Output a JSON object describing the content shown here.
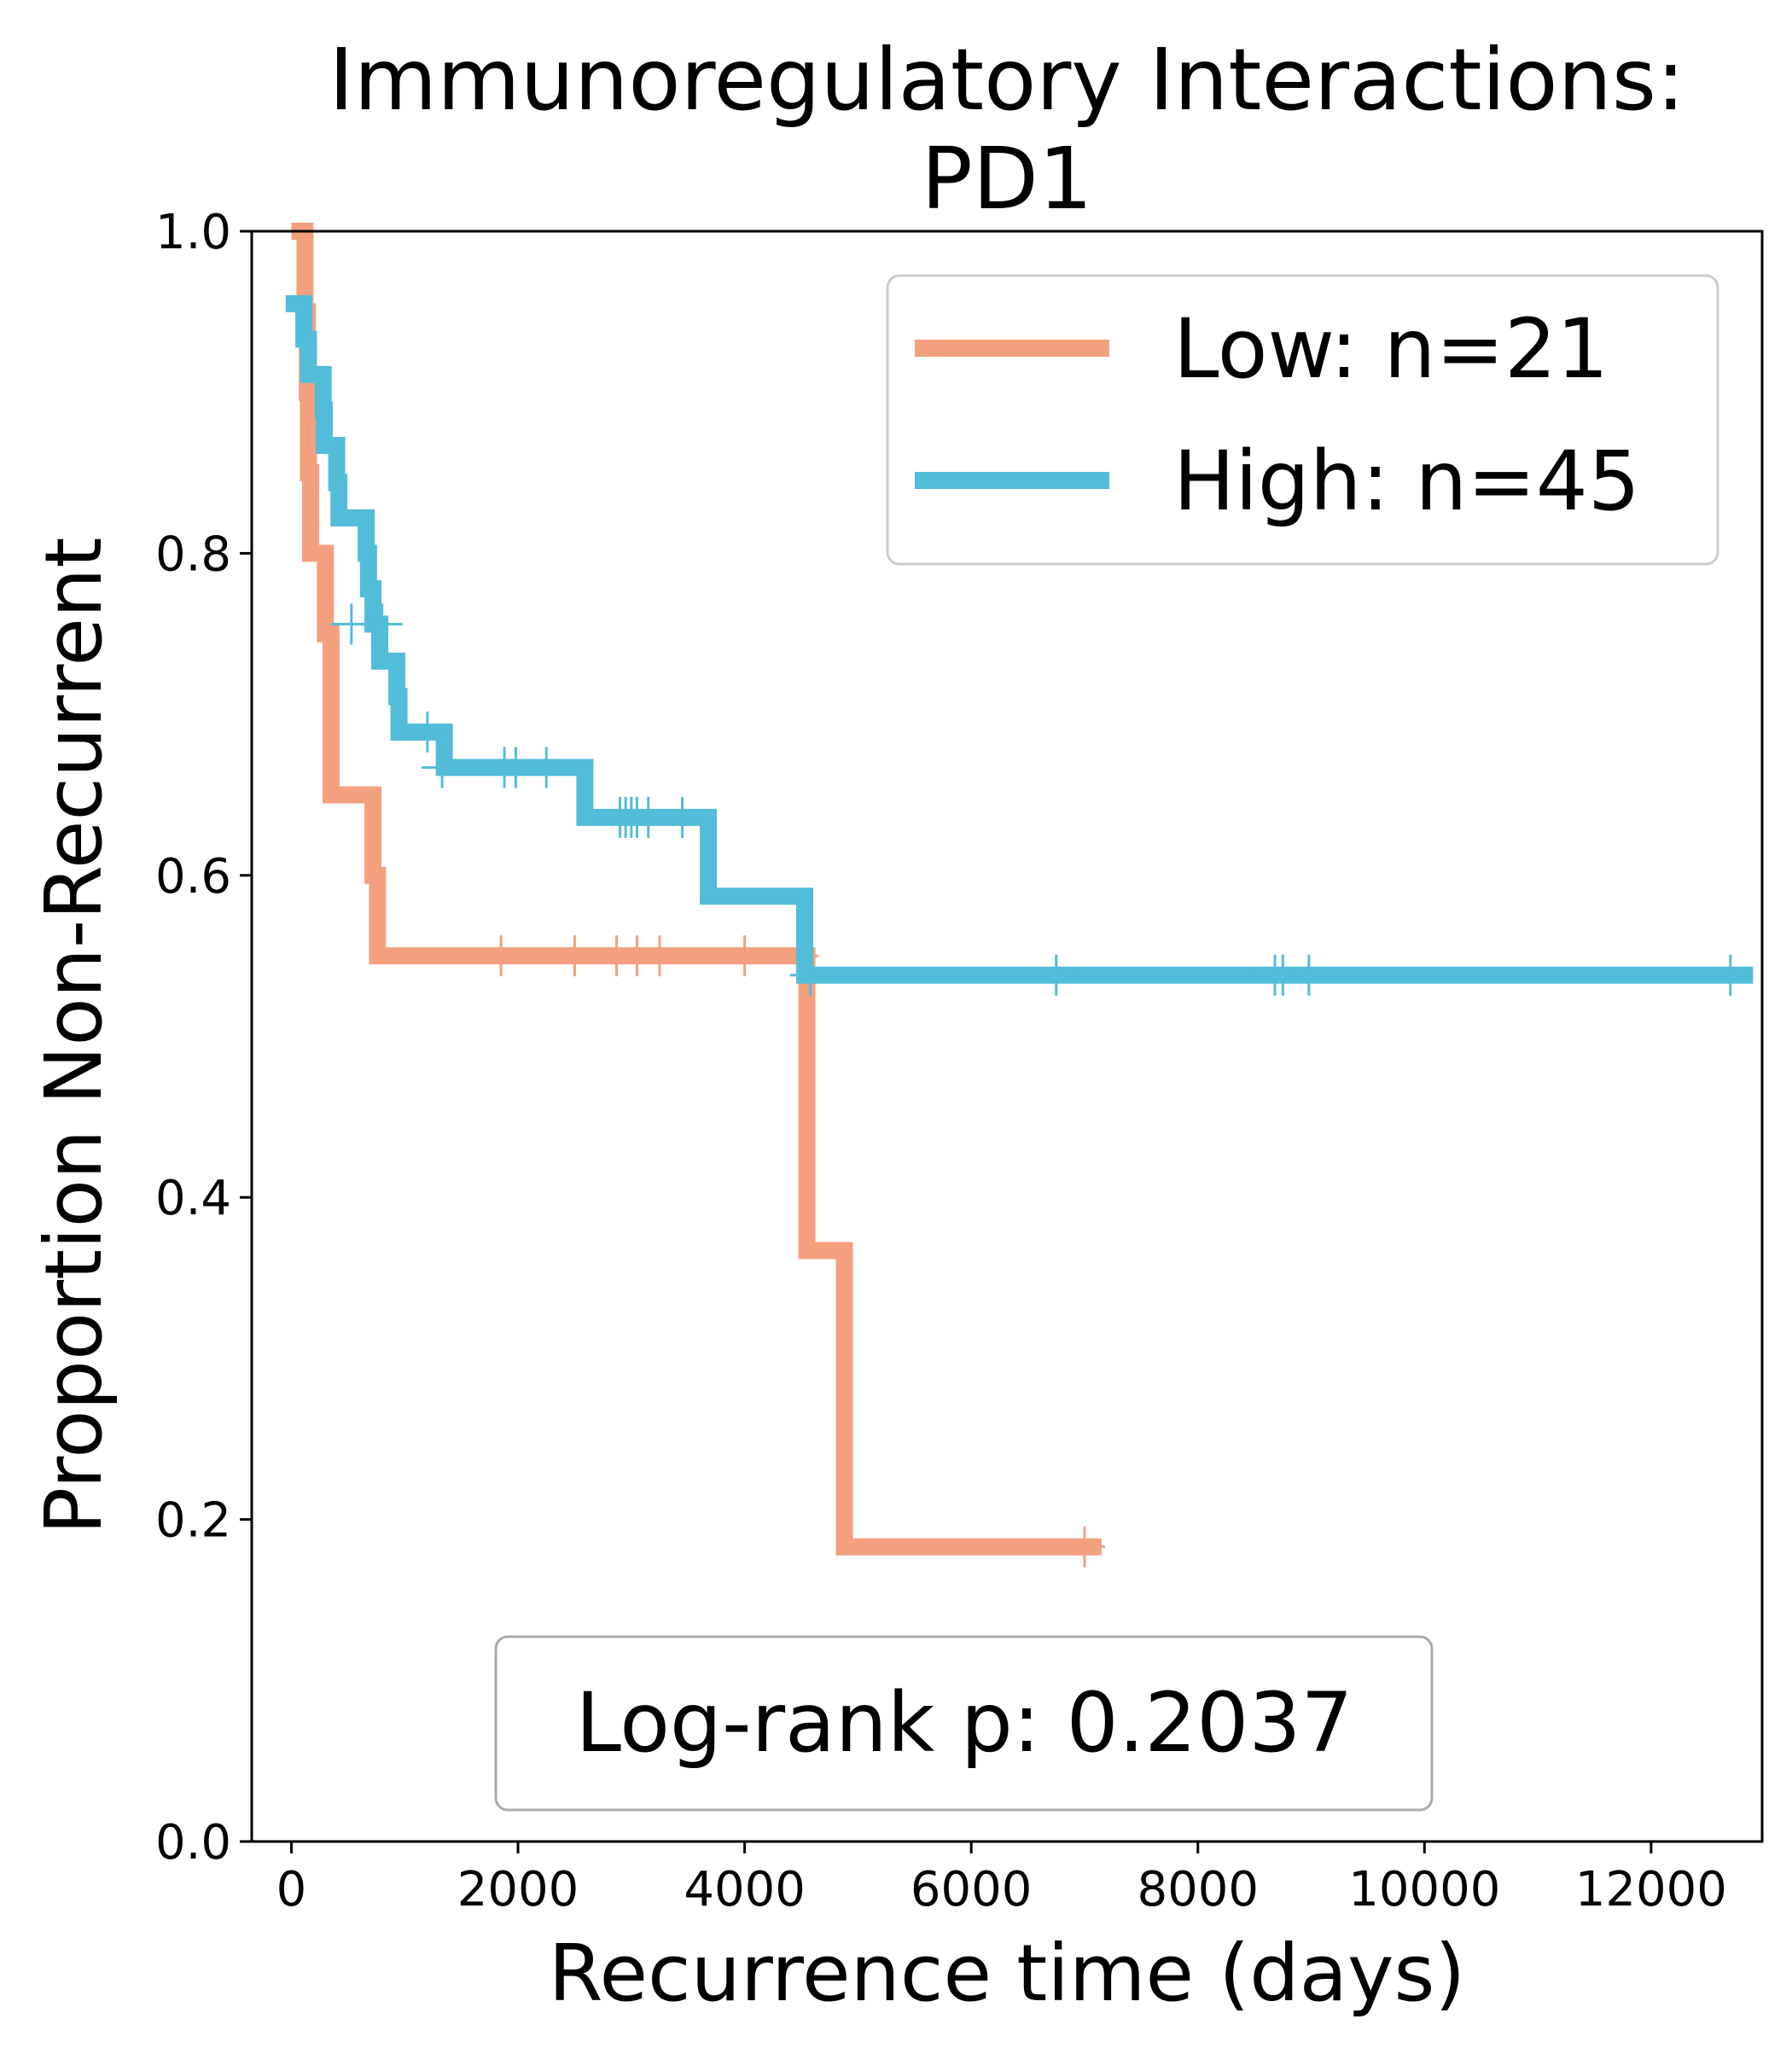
{
  "chart_data": {
    "type": "line",
    "title_line1": "Immunoregulatory Interactions:",
    "title_line2": "PD1",
    "xlabel": "Recurrence time (days)",
    "ylabel": "Proportion Non-Recurrent",
    "xlim": [
      -350,
      12980
    ],
    "ylim": [
      0,
      1.0
    ],
    "xticks": [
      0,
      2000,
      4000,
      6000,
      8000,
      10000,
      12000
    ],
    "yticks": [
      0.0,
      0.2,
      0.4,
      0.6,
      0.8,
      1.0
    ],
    "xtick_labels": [
      "0",
      "2000",
      "4000",
      "6000",
      "8000",
      "10000",
      "12000"
    ],
    "ytick_labels": [
      "0.0",
      "0.2",
      "0.4",
      "0.6",
      "0.8",
      "1.0"
    ],
    "grid": false,
    "legend_position": "top-right",
    "annotation": "Log-rank p: 0.2037",
    "series": [
      {
        "name": "Low: n=21",
        "color": "#f4a07f",
        "steps": [
          [
            0,
            1.0
          ],
          [
            120,
            0.95
          ],
          [
            140,
            0.9
          ],
          [
            150,
            0.85
          ],
          [
            170,
            0.8
          ],
          [
            300,
            0.75
          ],
          [
            350,
            0.65
          ],
          [
            720,
            0.6
          ],
          [
            760,
            0.55
          ],
          [
            4550,
            0.367
          ],
          [
            4880,
            0.183
          ],
          [
            7150,
            0.183
          ]
        ],
        "censored": [
          [
            1850,
            0.55
          ],
          [
            2500,
            0.55
          ],
          [
            2870,
            0.55
          ],
          [
            3050,
            0.55
          ],
          [
            3250,
            0.55
          ],
          [
            4000,
            0.55
          ],
          [
            4470,
            0.55
          ],
          [
            7000,
            0.183
          ]
        ]
      },
      {
        "name": "High: n=45",
        "color": "#52bdd8",
        "steps": [
          [
            -50,
            0.955
          ],
          [
            110,
            0.933
          ],
          [
            150,
            0.911
          ],
          [
            280,
            0.889
          ],
          [
            290,
            0.867
          ],
          [
            400,
            0.844
          ],
          [
            420,
            0.822
          ],
          [
            660,
            0.8
          ],
          [
            680,
            0.778
          ],
          [
            720,
            0.756
          ],
          [
            780,
            0.733
          ],
          [
            930,
            0.711
          ],
          [
            950,
            0.689
          ],
          [
            1350,
            0.667
          ],
          [
            2590,
            0.636
          ],
          [
            3680,
            0.587
          ],
          [
            4530,
            0.538
          ],
          [
            12900,
            0.538
          ]
        ],
        "censored": [
          [
            530,
            0.756
          ],
          [
            800,
            0.756
          ],
          [
            1200,
            0.689
          ],
          [
            1330,
            0.667
          ],
          [
            1880,
            0.667
          ],
          [
            1980,
            0.667
          ],
          [
            2250,
            0.667
          ],
          [
            2900,
            0.636
          ],
          [
            2950,
            0.636
          ],
          [
            3000,
            0.636
          ],
          [
            3050,
            0.636
          ],
          [
            3150,
            0.636
          ],
          [
            3450,
            0.636
          ],
          [
            4580,
            0.538
          ],
          [
            6750,
            0.538
          ],
          [
            8680,
            0.538
          ],
          [
            8750,
            0.538
          ],
          [
            8980,
            0.538
          ],
          [
            12700,
            0.538
          ]
        ]
      }
    ]
  }
}
